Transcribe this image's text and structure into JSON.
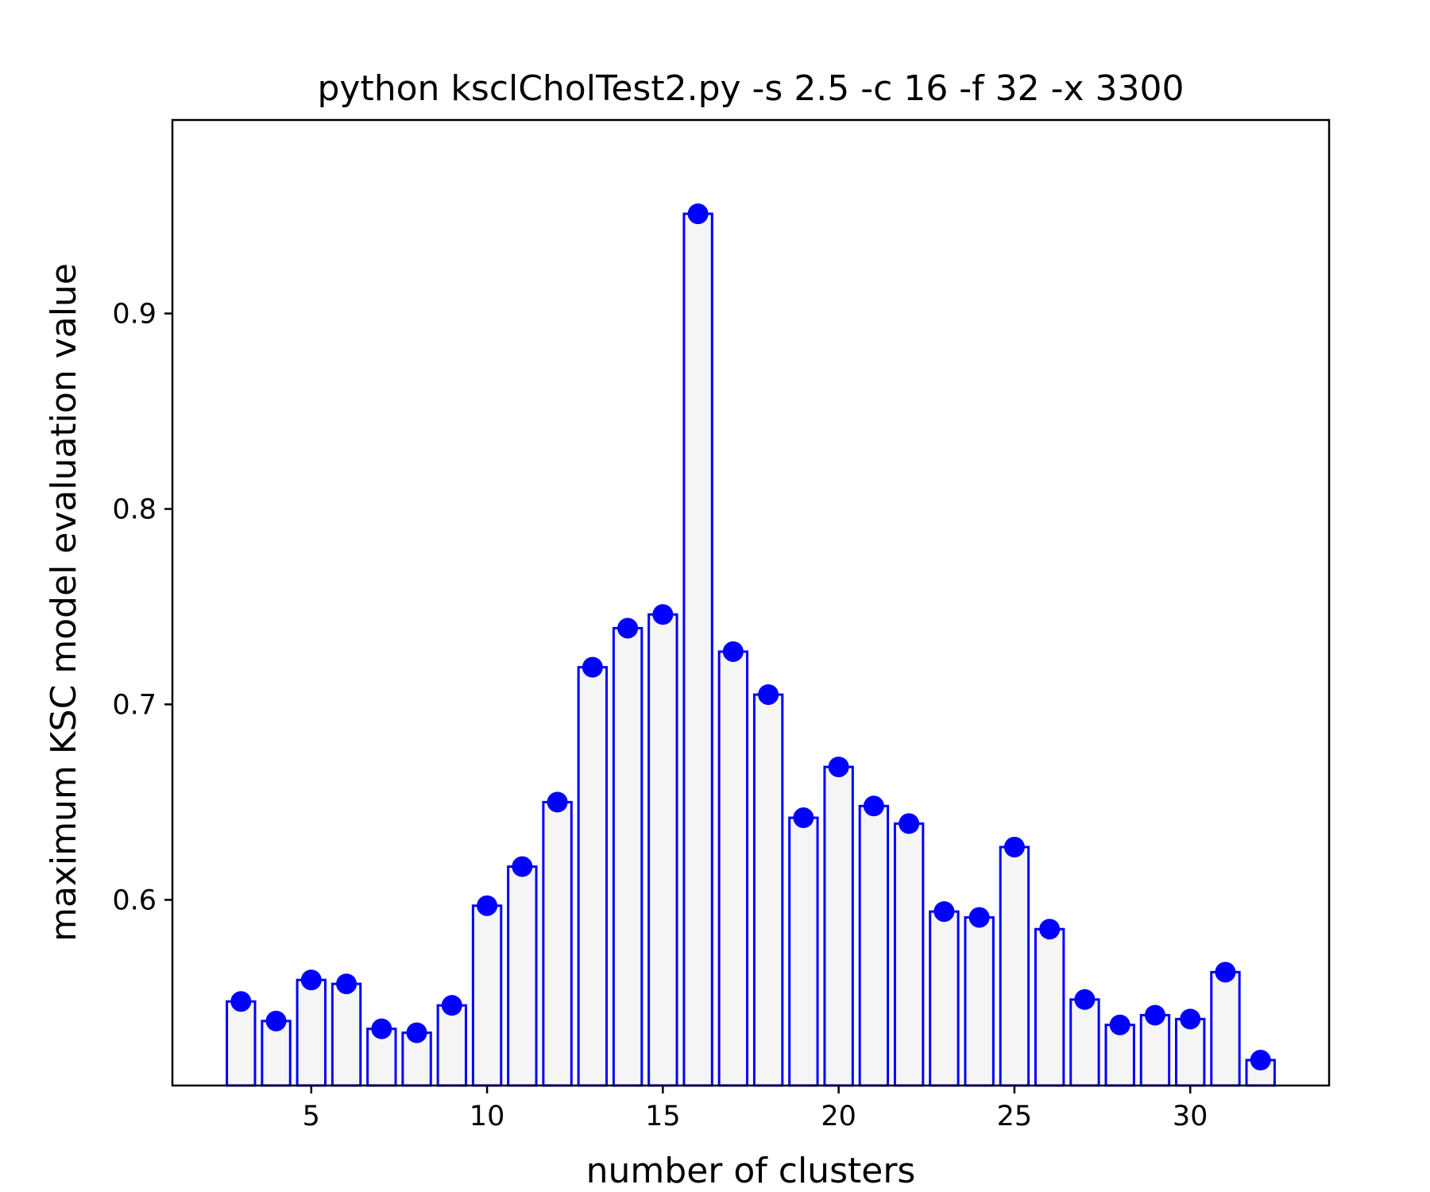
{
  "chart_data": {
    "type": "bar",
    "title": "python ksclCholTest2.py -s 2.5 -c 16 -f 32 -x 3300",
    "xlabel": "number of clusters",
    "ylabel": "maximum KSC model evaluation value",
    "x": [
      3,
      4,
      5,
      6,
      7,
      8,
      9,
      10,
      11,
      12,
      13,
      14,
      15,
      16,
      17,
      18,
      19,
      20,
      21,
      22,
      23,
      24,
      25,
      26,
      27,
      28,
      29,
      30,
      31,
      32
    ],
    "values": [
      0.548,
      0.538,
      0.559,
      0.557,
      0.534,
      0.532,
      0.546,
      0.597,
      0.617,
      0.65,
      0.719,
      0.739,
      0.746,
      0.951,
      0.727,
      0.705,
      0.642,
      0.668,
      0.648,
      0.639,
      0.594,
      0.591,
      0.627,
      0.585,
      0.549,
      0.536,
      0.541,
      0.539,
      0.563,
      0.518
    ],
    "xlim": [
      1.05,
      33.95
    ],
    "ylim": [
      0.505,
      0.999
    ],
    "xticks": [
      5,
      10,
      15,
      20,
      25,
      30
    ],
    "yticks": [
      0.6,
      0.7,
      0.8,
      0.9
    ],
    "ytick_labels": [
      "0.6",
      "0.7",
      "0.8",
      "0.9"
    ],
    "grid": false,
    "bar_fill": "#f5f5f5",
    "bar_edge_color": "#0000ff",
    "marker_color": "#0000ff",
    "markers": "dot at top of each bar"
  }
}
